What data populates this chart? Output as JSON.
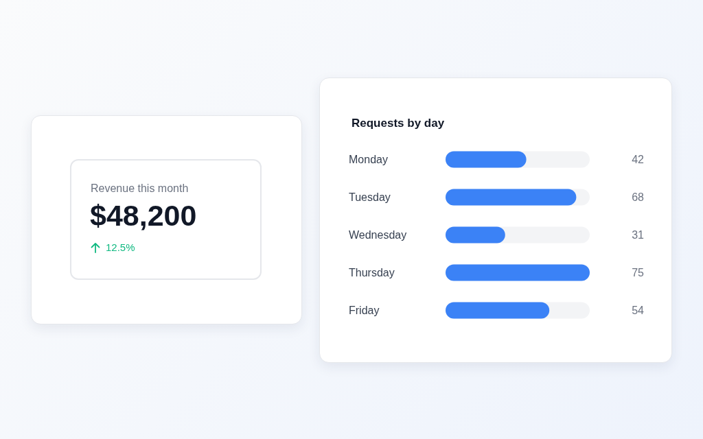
{
  "chart_data": [
    {
      "type": "other",
      "title": "Revenue this month",
      "annotations": [
        "$48,200",
        "12.5%"
      ],
      "color": "#10b981"
    },
    {
      "type": "bar",
      "title": "Requests by day",
      "orientation": "horizontal",
      "categories": [
        "Monday",
        "Tuesday",
        "Wednesday",
        "Thursday",
        "Friday"
      ],
      "values": [
        42,
        68,
        31,
        75,
        54
      ],
      "color": "#3b82f6",
      "xlim": [
        0,
        75
      ],
      "data_labels": true,
      "tick_labels": "y"
    }
  ]
}
